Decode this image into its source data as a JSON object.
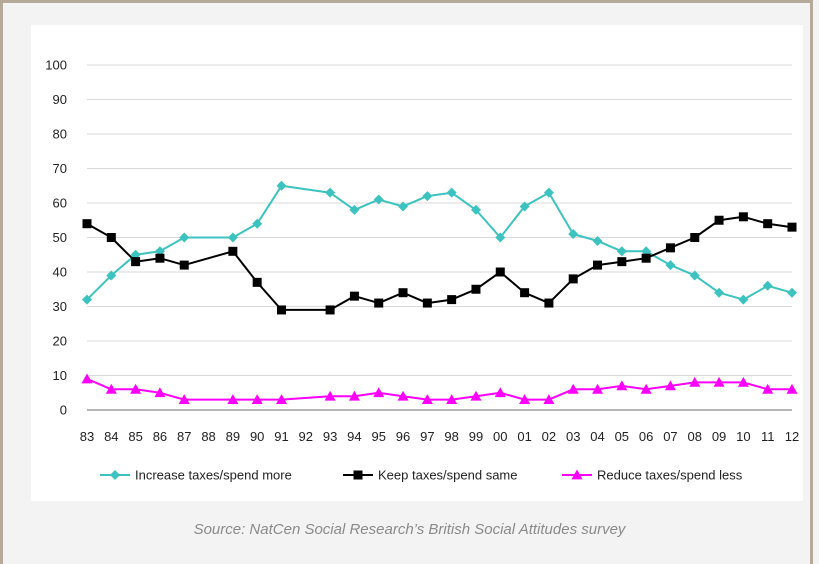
{
  "source_caption": "Source: NatCen Social Research’s British Social Attitudes survey",
  "chart_data": {
    "type": "line",
    "x": [
      "83",
      "84",
      "85",
      "86",
      "87",
      "88",
      "89",
      "90",
      "91",
      "92",
      "93",
      "94",
      "95",
      "96",
      "97",
      "98",
      "99",
      "00",
      "01",
      "02",
      "03",
      "04",
      "05",
      "06",
      "07",
      "08",
      "09",
      "10",
      "11",
      "12"
    ],
    "ylim": [
      0,
      100
    ],
    "yticks": [
      0,
      10,
      20,
      30,
      40,
      50,
      60,
      70,
      80,
      90,
      100
    ],
    "grid": true,
    "legend_position": "bottom",
    "series": [
      {
        "name": "Increase taxes/spend more",
        "color": "#3cc3c0",
        "marker": "diamond",
        "values": [
          32,
          39,
          45,
          46,
          50,
          null,
          50,
          54,
          65,
          null,
          63,
          58,
          61,
          59,
          62,
          63,
          58,
          50,
          59,
          63,
          51,
          49,
          46,
          46,
          42,
          39,
          34,
          32,
          36,
          34
        ]
      },
      {
        "name": "Keep taxes/spend same",
        "color": "#000000",
        "marker": "square",
        "values": [
          54,
          50,
          43,
          44,
          42,
          null,
          46,
          37,
          29,
          null,
          29,
          33,
          31,
          34,
          31,
          32,
          35,
          40,
          34,
          31,
          38,
          42,
          43,
          44,
          47,
          50,
          55,
          56,
          54,
          53
        ]
      },
      {
        "name": "Reduce taxes/spend less",
        "color": "#ff00ff",
        "marker": "triangle",
        "values": [
          9,
          6,
          6,
          5,
          3,
          null,
          3,
          3,
          3,
          null,
          4,
          4,
          5,
          4,
          3,
          3,
          4,
          5,
          3,
          3,
          6,
          6,
          7,
          6,
          7,
          8,
          8,
          8,
          6,
          6
        ]
      }
    ]
  }
}
